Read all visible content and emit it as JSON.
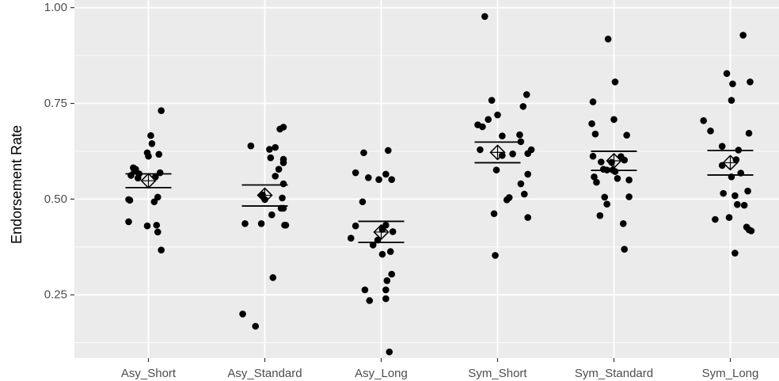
{
  "chart_data": {
    "type": "scatter",
    "xlabel": "",
    "ylabel": "Endorsement Rate",
    "ylim": [
      0.085,
      1.02
    ],
    "y_ticks": [
      "0.25",
      "0.50",
      "0.75",
      "1.00"
    ],
    "y_tick_values": [
      0.25,
      0.5,
      0.75,
      1.0
    ],
    "categories": [
      "Asy_Short",
      "Asy_Standard",
      "Asy_Long",
      "Sym_Short",
      "Sym_Standard",
      "Sym_Long"
    ],
    "grid": true,
    "background_color": "#ebebeb",
    "grid_color": "#ffffff",
    "point_color": "#000000",
    "groups": [
      {
        "category": "Asy_Short",
        "mean": 0.548,
        "ci_lower": 0.53,
        "ci_upper": 0.566,
        "points": [
          {
            "jitter": 0.11,
            "y": 0.731
          },
          {
            "jitter": 0.02,
            "y": 0.666
          },
          {
            "jitter": 0.03,
            "y": 0.645
          },
          {
            "jitter": -0.01,
            "y": 0.621
          },
          {
            "jitter": 0.09,
            "y": 0.617
          },
          {
            "jitter": 0.0,
            "y": 0.612
          },
          {
            "jitter": -0.13,
            "y": 0.582
          },
          {
            "jitter": -0.11,
            "y": 0.578
          },
          {
            "jitter": -0.12,
            "y": 0.573
          },
          {
            "jitter": 0.1,
            "y": 0.569
          },
          {
            "jitter": -0.08,
            "y": 0.566
          },
          {
            "jitter": -0.15,
            "y": 0.562
          },
          {
            "jitter": 0.06,
            "y": 0.558
          },
          {
            "jitter": -0.09,
            "y": 0.555
          },
          {
            "jitter": 0.08,
            "y": 0.505
          },
          {
            "jitter": -0.17,
            "y": 0.499
          },
          {
            "jitter": -0.16,
            "y": 0.497
          },
          {
            "jitter": 0.05,
            "y": 0.493
          },
          {
            "jitter": -0.17,
            "y": 0.441
          },
          {
            "jitter": -0.01,
            "y": 0.43
          },
          {
            "jitter": 0.07,
            "y": 0.432
          },
          {
            "jitter": 0.08,
            "y": 0.414
          },
          {
            "jitter": 0.11,
            "y": 0.367
          }
        ]
      },
      {
        "category": "Asy_Standard",
        "mean": 0.51,
        "ci_lower": 0.482,
        "ci_upper": 0.537,
        "points": [
          {
            "jitter": 0.16,
            "y": 0.688
          },
          {
            "jitter": 0.13,
            "y": 0.683
          },
          {
            "jitter": -0.12,
            "y": 0.639
          },
          {
            "jitter": 0.09,
            "y": 0.635
          },
          {
            "jitter": 0.04,
            "y": 0.63
          },
          {
            "jitter": 0.05,
            "y": 0.608
          },
          {
            "jitter": 0.16,
            "y": 0.604
          },
          {
            "jitter": 0.16,
            "y": 0.595
          },
          {
            "jitter": 0.12,
            "y": 0.578
          },
          {
            "jitter": 0.09,
            "y": 0.56
          },
          {
            "jitter": 0.16,
            "y": 0.54
          },
          {
            "jitter": 0.15,
            "y": 0.503
          },
          {
            "jitter": -0.02,
            "y": 0.511
          },
          {
            "jitter": 0.0,
            "y": 0.499
          },
          {
            "jitter": 0.14,
            "y": 0.476
          },
          {
            "jitter": 0.16,
            "y": 0.476
          },
          {
            "jitter": 0.06,
            "y": 0.459
          },
          {
            "jitter": -0.17,
            "y": 0.436
          },
          {
            "jitter": -0.03,
            "y": 0.436
          },
          {
            "jitter": 0.17,
            "y": 0.432
          },
          {
            "jitter": 0.18,
            "y": 0.432
          },
          {
            "jitter": 0.07,
            "y": 0.295
          },
          {
            "jitter": -0.19,
            "y": 0.2
          },
          {
            "jitter": -0.08,
            "y": 0.168
          }
        ]
      },
      {
        "category": "Asy_Long",
        "mean": 0.414,
        "ci_lower": 0.387,
        "ci_upper": 0.442,
        "points": [
          {
            "jitter": -0.15,
            "y": 0.621
          },
          {
            "jitter": 0.06,
            "y": 0.627
          },
          {
            "jitter": -0.22,
            "y": 0.569
          },
          {
            "jitter": 0.04,
            "y": 0.565
          },
          {
            "jitter": -0.11,
            "y": 0.556
          },
          {
            "jitter": -0.02,
            "y": 0.551
          },
          {
            "jitter": 0.09,
            "y": 0.551
          },
          {
            "jitter": -0.16,
            "y": 0.493
          },
          {
            "jitter": 0.04,
            "y": 0.432
          },
          {
            "jitter": -0.22,
            "y": 0.43
          },
          {
            "jitter": 0.01,
            "y": 0.421
          },
          {
            "jitter": 0.1,
            "y": 0.415
          },
          {
            "jitter": -0.26,
            "y": 0.398
          },
          {
            "jitter": -0.03,
            "y": 0.393
          },
          {
            "jitter": -0.07,
            "y": 0.38
          },
          {
            "jitter": 0.08,
            "y": 0.363
          },
          {
            "jitter": 0.01,
            "y": 0.356
          },
          {
            "jitter": 0.09,
            "y": 0.304
          },
          {
            "jitter": 0.05,
            "y": 0.287
          },
          {
            "jitter": -0.14,
            "y": 0.263
          },
          {
            "jitter": 0.04,
            "y": 0.263
          },
          {
            "jitter": -0.1,
            "y": 0.235
          },
          {
            "jitter": 0.04,
            "y": 0.24
          },
          {
            "jitter": 0.07,
            "y": 0.101
          }
        ]
      },
      {
        "category": "Sym_Short",
        "mean": 0.622,
        "ci_lower": 0.595,
        "ci_upper": 0.649,
        "points": [
          {
            "jitter": -0.11,
            "y": 0.977
          },
          {
            "jitter": 0.25,
            "y": 0.773
          },
          {
            "jitter": -0.05,
            "y": 0.758
          },
          {
            "jitter": 0.22,
            "y": 0.742
          },
          {
            "jitter": 0.0,
            "y": 0.72
          },
          {
            "jitter": -0.08,
            "y": 0.708
          },
          {
            "jitter": -0.17,
            "y": 0.694
          },
          {
            "jitter": -0.13,
            "y": 0.689
          },
          {
            "jitter": 0.19,
            "y": 0.668
          },
          {
            "jitter": 0.04,
            "y": 0.665
          },
          {
            "jitter": 0.2,
            "y": 0.65
          },
          {
            "jitter": 0.29,
            "y": 0.629
          },
          {
            "jitter": -0.15,
            "y": 0.629
          },
          {
            "jitter": 0.26,
            "y": 0.619
          },
          {
            "jitter": 0.13,
            "y": 0.618
          },
          {
            "jitter": 0.04,
            "y": 0.614
          },
          {
            "jitter": -0.01,
            "y": 0.576
          },
          {
            "jitter": 0.26,
            "y": 0.565
          },
          {
            "jitter": 0.2,
            "y": 0.54
          },
          {
            "jitter": 0.23,
            "y": 0.513
          },
          {
            "jitter": 0.1,
            "y": 0.504
          },
          {
            "jitter": 0.08,
            "y": 0.498
          },
          {
            "jitter": -0.03,
            "y": 0.462
          },
          {
            "jitter": 0.26,
            "y": 0.452
          },
          {
            "jitter": -0.02,
            "y": 0.353
          }
        ]
      },
      {
        "category": "Sym_Standard",
        "mean": 0.6,
        "ci_lower": 0.575,
        "ci_upper": 0.625,
        "points": [
          {
            "jitter": -0.05,
            "y": 0.918
          },
          {
            "jitter": 0.01,
            "y": 0.806
          },
          {
            "jitter": -0.18,
            "y": 0.754
          },
          {
            "jitter": 0.0,
            "y": 0.708
          },
          {
            "jitter": -0.19,
            "y": 0.697
          },
          {
            "jitter": 0.11,
            "y": 0.667
          },
          {
            "jitter": -0.16,
            "y": 0.67
          },
          {
            "jitter": -0.18,
            "y": 0.612
          },
          {
            "jitter": 0.06,
            "y": 0.611
          },
          {
            "jitter": 0.09,
            "y": 0.602
          },
          {
            "jitter": -0.11,
            "y": 0.597
          },
          {
            "jitter": -0.02,
            "y": 0.596
          },
          {
            "jitter": -0.09,
            "y": 0.578
          },
          {
            "jitter": -0.06,
            "y": 0.576
          },
          {
            "jitter": -0.01,
            "y": 0.576
          },
          {
            "jitter": 0.01,
            "y": 0.572
          },
          {
            "jitter": -0.17,
            "y": 0.558
          },
          {
            "jitter": 0.03,
            "y": 0.554
          },
          {
            "jitter": 0.13,
            "y": 0.55
          },
          {
            "jitter": -0.15,
            "y": 0.544
          },
          {
            "jitter": 0.13,
            "y": 0.506
          },
          {
            "jitter": -0.08,
            "y": 0.505
          },
          {
            "jitter": -0.06,
            "y": 0.487
          },
          {
            "jitter": -0.12,
            "y": 0.457
          },
          {
            "jitter": 0.08,
            "y": 0.436
          },
          {
            "jitter": 0.09,
            "y": 0.369
          }
        ]
      },
      {
        "category": "Sym_Long",
        "mean": 0.595,
        "ci_lower": 0.563,
        "ci_upper": 0.627,
        "points": [
          {
            "jitter": 0.11,
            "y": 0.928
          },
          {
            "jitter": -0.03,
            "y": 0.828
          },
          {
            "jitter": 0.17,
            "y": 0.806
          },
          {
            "jitter": 0.02,
            "y": 0.801
          },
          {
            "jitter": 0.01,
            "y": 0.758
          },
          {
            "jitter": -0.23,
            "y": 0.705
          },
          {
            "jitter": -0.17,
            "y": 0.678
          },
          {
            "jitter": 0.16,
            "y": 0.672
          },
          {
            "jitter": -0.07,
            "y": 0.638
          },
          {
            "jitter": 0.07,
            "y": 0.628
          },
          {
            "jitter": 0.05,
            "y": 0.603
          },
          {
            "jitter": -0.07,
            "y": 0.588
          },
          {
            "jitter": 0.09,
            "y": 0.568
          },
          {
            "jitter": 0.01,
            "y": 0.558
          },
          {
            "jitter": 0.15,
            "y": 0.521
          },
          {
            "jitter": -0.06,
            "y": 0.515
          },
          {
            "jitter": 0.04,
            "y": 0.509
          },
          {
            "jitter": 0.06,
            "y": 0.486
          },
          {
            "jitter": 0.12,
            "y": 0.484
          },
          {
            "jitter": -0.01,
            "y": 0.452
          },
          {
            "jitter": -0.13,
            "y": 0.447
          },
          {
            "jitter": 0.14,
            "y": 0.427
          },
          {
            "jitter": 0.16,
            "y": 0.42
          },
          {
            "jitter": 0.18,
            "y": 0.417
          },
          {
            "jitter": 0.04,
            "y": 0.359
          }
        ]
      }
    ]
  }
}
